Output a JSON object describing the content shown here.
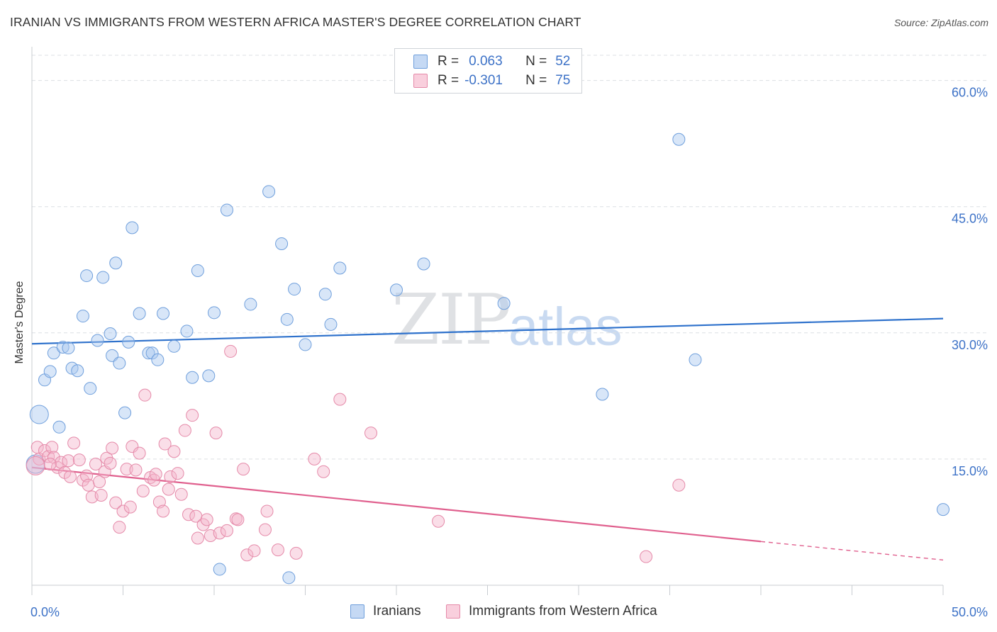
{
  "title": "IRANIAN VS IMMIGRANTS FROM WESTERN AFRICA MASTER'S DEGREE CORRELATION CHART",
  "source": "Source: ZipAtlas.com",
  "watermark": {
    "part1": "ZIP",
    "part2": "atlas"
  },
  "legend": {
    "rows": [
      {
        "r_label": "R =",
        "r_value": "0.063",
        "n_label": "N =",
        "n_value": "52",
        "color": "#a9c8ef"
      },
      {
        "r_label": "R =",
        "r_value": "-0.301",
        "n_label": "N =",
        "n_value": "75",
        "color": "#f4b6cc"
      }
    ]
  },
  "chart_data": {
    "type": "scatter",
    "title": "IRANIAN VS IMMIGRANTS FROM WESTERN AFRICA MASTER'S DEGREE CORRELATION CHART",
    "xlabel": "",
    "ylabel": "Master's Degree",
    "xlim": [
      0,
      50
    ],
    "ylim": [
      0,
      63
    ],
    "x_tick_labels": [
      "0.0%",
      "50.0%"
    ],
    "y_ticks": [
      15,
      30,
      45,
      60
    ],
    "y_tick_labels": [
      "15.0%",
      "30.0%",
      "45.0%",
      "60.0%"
    ],
    "grid": "horizontal dashed",
    "legend_position": "top-center",
    "series": [
      {
        "name": "Iranians",
        "color": "#a9c8ef",
        "edge": "#6f9fdc",
        "trend_color": "#2f72cc",
        "trend": {
          "x0": 0,
          "y0": 28.7,
          "x1": 50,
          "y1": 31.7,
          "dashed_from": null
        },
        "points": [
          [
            0.4,
            20.3
          ],
          [
            0.7,
            24.4
          ],
          [
            1.0,
            25.4
          ],
          [
            1.2,
            27.6
          ],
          [
            1.5,
            18.8
          ],
          [
            1.7,
            28.3
          ],
          [
            2.0,
            28.2
          ],
          [
            2.2,
            25.8
          ],
          [
            2.5,
            25.5
          ],
          [
            2.8,
            32.0
          ],
          [
            3.0,
            36.8
          ],
          [
            3.2,
            23.4
          ],
          [
            3.6,
            29.1
          ],
          [
            3.9,
            36.6
          ],
          [
            4.3,
            29.9
          ],
          [
            4.4,
            27.3
          ],
          [
            4.6,
            38.3
          ],
          [
            4.8,
            26.4
          ],
          [
            5.1,
            20.5
          ],
          [
            5.3,
            28.9
          ],
          [
            5.5,
            42.5
          ],
          [
            5.9,
            32.3
          ],
          [
            6.4,
            27.6
          ],
          [
            6.6,
            27.6
          ],
          [
            6.9,
            26.8
          ],
          [
            7.2,
            32.3
          ],
          [
            7.8,
            28.4
          ],
          [
            8.5,
            30.2
          ],
          [
            8.8,
            24.7
          ],
          [
            9.1,
            37.4
          ],
          [
            9.7,
            24.9
          ],
          [
            10.0,
            32.4
          ],
          [
            10.3,
            1.9
          ],
          [
            10.7,
            44.6
          ],
          [
            12.0,
            33.4
          ],
          [
            13.0,
            46.8
          ],
          [
            13.7,
            40.6
          ],
          [
            14.0,
            31.6
          ],
          [
            14.1,
            0.9
          ],
          [
            14.4,
            35.2
          ],
          [
            15.0,
            28.6
          ],
          [
            16.1,
            34.6
          ],
          [
            16.4,
            31.0
          ],
          [
            16.9,
            37.7
          ],
          [
            20.0,
            35.1
          ],
          [
            21.5,
            38.2
          ],
          [
            25.9,
            33.5
          ],
          [
            31.3,
            22.7
          ],
          [
            35.5,
            53.0
          ],
          [
            36.4,
            26.8
          ],
          [
            50.0,
            9.0
          ],
          [
            0.2,
            14.4
          ]
        ]
      },
      {
        "name": "Immigrants from Western Africa",
        "color": "#f4b6cc",
        "edge": "#e58aa9",
        "trend_color": "#e0608e",
        "trend": {
          "x0": 0,
          "y0": 14.0,
          "x1": 50,
          "y1": 3.0,
          "dashed_from": 40.0
        },
        "points": [
          [
            0.3,
            16.4
          ],
          [
            0.4,
            15.0
          ],
          [
            0.7,
            16.0
          ],
          [
            0.9,
            15.3
          ],
          [
            1.1,
            16.4
          ],
          [
            1.2,
            15.2
          ],
          [
            1.4,
            14.0
          ],
          [
            1.6,
            14.6
          ],
          [
            1.8,
            13.4
          ],
          [
            2.0,
            14.8
          ],
          [
            2.1,
            12.9
          ],
          [
            2.3,
            16.9
          ],
          [
            2.6,
            14.9
          ],
          [
            2.8,
            12.5
          ],
          [
            3.0,
            13.0
          ],
          [
            3.1,
            11.9
          ],
          [
            3.3,
            10.5
          ],
          [
            3.5,
            14.4
          ],
          [
            3.7,
            12.3
          ],
          [
            3.8,
            10.7
          ],
          [
            4.0,
            13.5
          ],
          [
            4.1,
            15.1
          ],
          [
            4.3,
            14.5
          ],
          [
            4.4,
            16.3
          ],
          [
            4.6,
            9.8
          ],
          [
            4.8,
            6.9
          ],
          [
            5.0,
            8.8
          ],
          [
            5.2,
            13.8
          ],
          [
            5.4,
            9.3
          ],
          [
            5.5,
            16.5
          ],
          [
            5.7,
            13.7
          ],
          [
            5.9,
            15.7
          ],
          [
            6.1,
            11.2
          ],
          [
            6.2,
            22.6
          ],
          [
            6.5,
            12.8
          ],
          [
            6.7,
            12.5
          ],
          [
            6.8,
            13.2
          ],
          [
            7.0,
            9.9
          ],
          [
            7.2,
            8.8
          ],
          [
            7.3,
            16.8
          ],
          [
            7.5,
            11.4
          ],
          [
            7.6,
            12.9
          ],
          [
            7.8,
            15.9
          ],
          [
            8.0,
            13.3
          ],
          [
            8.2,
            10.8
          ],
          [
            8.4,
            18.4
          ],
          [
            8.6,
            8.4
          ],
          [
            8.8,
            20.2
          ],
          [
            9.0,
            8.2
          ],
          [
            9.1,
            5.6
          ],
          [
            9.4,
            7.2
          ],
          [
            9.6,
            7.8
          ],
          [
            9.8,
            5.9
          ],
          [
            10.1,
            18.1
          ],
          [
            10.3,
            6.2
          ],
          [
            10.7,
            6.5
          ],
          [
            10.9,
            27.8
          ],
          [
            11.2,
            7.9
          ],
          [
            11.3,
            7.8
          ],
          [
            11.6,
            13.8
          ],
          [
            11.8,
            3.6
          ],
          [
            12.2,
            4.1
          ],
          [
            12.8,
            6.6
          ],
          [
            12.9,
            8.8
          ],
          [
            13.5,
            4.2
          ],
          [
            14.5,
            3.8
          ],
          [
            15.5,
            15.0
          ],
          [
            16.0,
            13.5
          ],
          [
            16.9,
            22.1
          ],
          [
            18.6,
            18.1
          ],
          [
            22.3,
            7.6
          ],
          [
            33.7,
            3.4
          ],
          [
            35.5,
            11.9
          ],
          [
            0.2,
            14.2
          ],
          [
            1.0,
            14.4
          ]
        ]
      }
    ]
  }
}
